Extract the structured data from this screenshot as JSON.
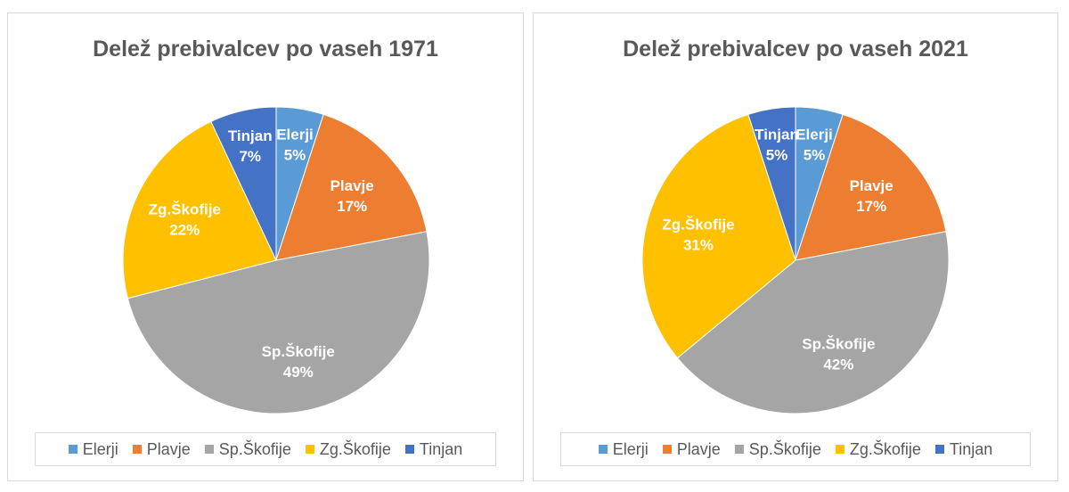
{
  "chart_data": [
    {
      "type": "pie",
      "title": "Delež prebivalcev po vaseh 1971",
      "categories": [
        "Elerji",
        "Plavje",
        "Sp.Škofije",
        "Zg.Škofije",
        "Tinjan"
      ],
      "values": [
        5,
        17,
        49,
        22,
        7
      ],
      "labels": [
        "5%",
        "17%",
        "49%",
        "22%",
        "7%"
      ],
      "colors": [
        "#5b9bd5",
        "#ed7d31",
        "#a5a5a5",
        "#ffc000",
        "#4472c4"
      ],
      "legend": "bottom"
    },
    {
      "type": "pie",
      "title": "Delež prebivalcev po vaseh 2021",
      "categories": [
        "Elerji",
        "Plavje",
        "Sp.Škofije",
        "Zg.Škofije",
        "Tinjan"
      ],
      "values": [
        5,
        17,
        42,
        31,
        5
      ],
      "labels": [
        "5%",
        "17%",
        "42%",
        "31%",
        "5%"
      ],
      "colors": [
        "#5b9bd5",
        "#ed7d31",
        "#a5a5a5",
        "#ffc000",
        "#4472c4"
      ],
      "legend": "bottom"
    }
  ]
}
